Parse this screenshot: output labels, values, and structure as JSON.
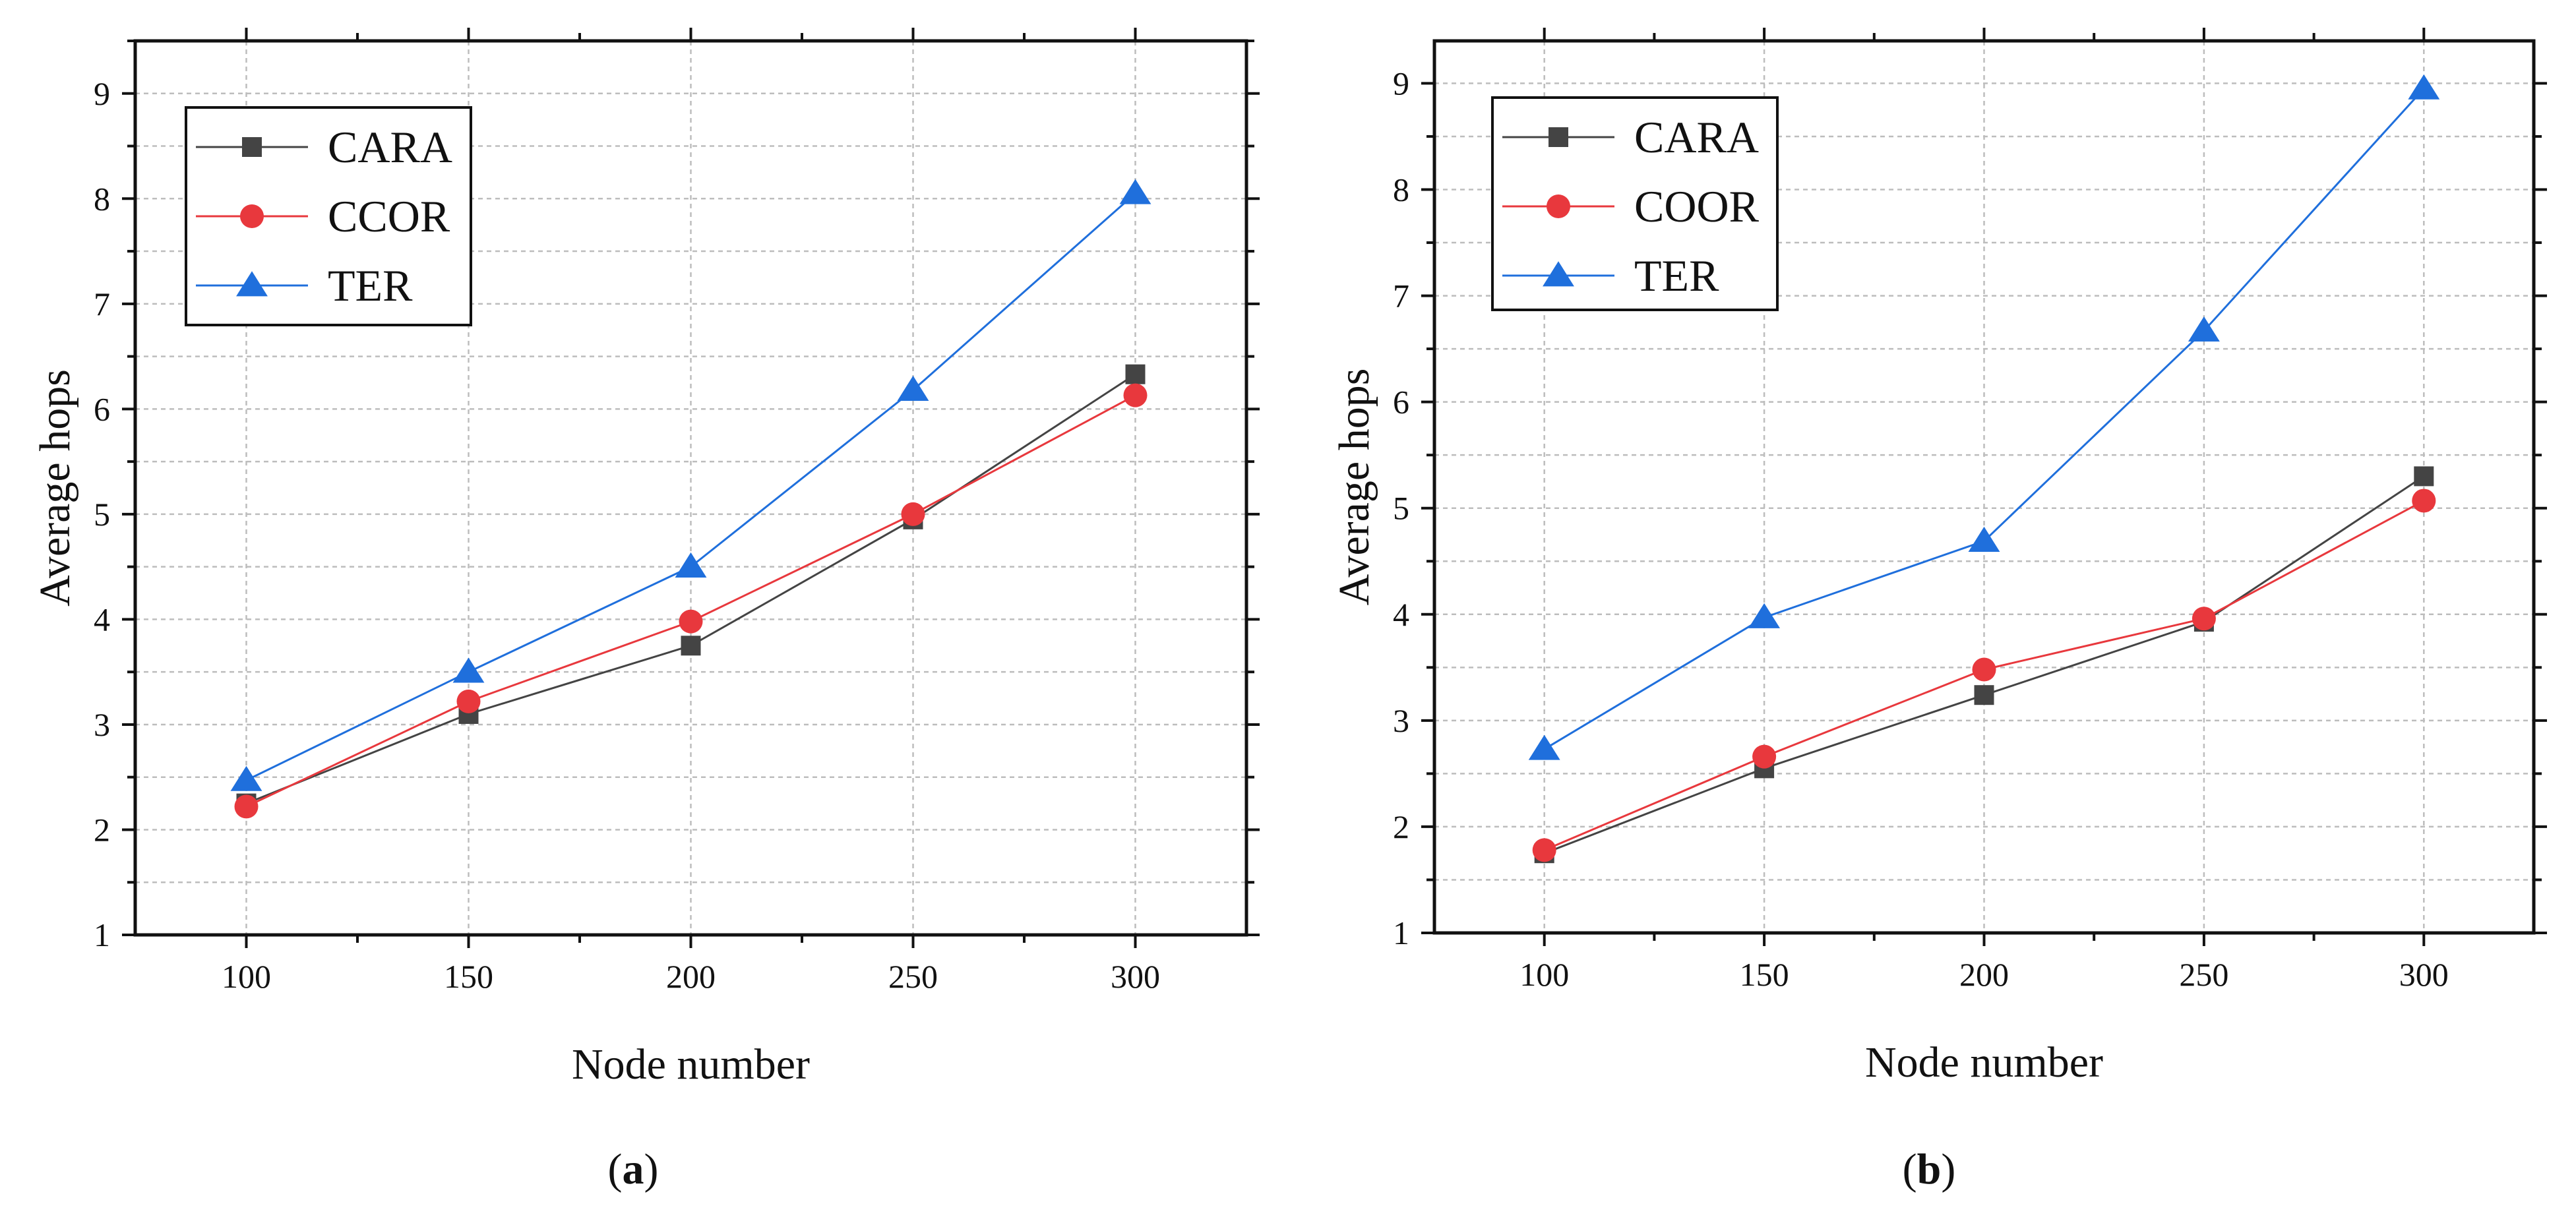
{
  "chart_data": [
    {
      "type": "line",
      "panel": "a",
      "xlabel": "Node number",
      "ylabel": "Average hops",
      "xlim": [
        75,
        325
      ],
      "ylim": [
        1,
        9.5
      ],
      "xticks": [
        100,
        150,
        200,
        250,
        300
      ],
      "yticks": [
        1,
        2,
        3,
        4,
        5,
        6,
        7,
        8,
        9
      ],
      "grid": true,
      "legend_position": "top-left",
      "x": [
        100,
        150,
        200,
        250,
        300
      ],
      "series": [
        {
          "name": "CARA",
          "values": [
            2.25,
            3.1,
            3.75,
            4.95,
            6.33
          ],
          "color": "#444444",
          "marker": "square"
        },
        {
          "name": "CCOR",
          "values": [
            2.22,
            3.22,
            3.98,
            5.0,
            6.13
          ],
          "color": "#e8383d",
          "marker": "circle"
        },
        {
          "name": "TER",
          "values": [
            2.47,
            3.5,
            4.5,
            6.18,
            8.05
          ],
          "color": "#1f6fdc",
          "marker": "triangle"
        }
      ],
      "caption_open": "(",
      "caption_letter": "a",
      "caption_close": ")"
    },
    {
      "type": "line",
      "panel": "b",
      "xlabel": "Node number",
      "ylabel": "Average hops",
      "xlim": [
        75,
        325
      ],
      "ylim": [
        1,
        9.4
      ],
      "xticks": [
        100,
        150,
        200,
        250,
        300
      ],
      "yticks": [
        1,
        2,
        3,
        4,
        5,
        6,
        7,
        8,
        9
      ],
      "grid": true,
      "legend_position": "top-left",
      "x": [
        100,
        150,
        200,
        250,
        300
      ],
      "series": [
        {
          "name": "CARA",
          "values": [
            1.75,
            2.55,
            3.24,
            3.93,
            5.3
          ],
          "color": "#444444",
          "marker": "square"
        },
        {
          "name": "COOR",
          "values": [
            1.78,
            2.66,
            3.48,
            3.96,
            5.07
          ],
          "color": "#e8383d",
          "marker": "circle"
        },
        {
          "name": "TER",
          "values": [
            2.73,
            3.97,
            4.69,
            6.67,
            8.95
          ],
          "color": "#1f6fdc",
          "marker": "triangle"
        }
      ],
      "caption_open": "(",
      "caption_letter": "b",
      "caption_close": ")"
    }
  ]
}
